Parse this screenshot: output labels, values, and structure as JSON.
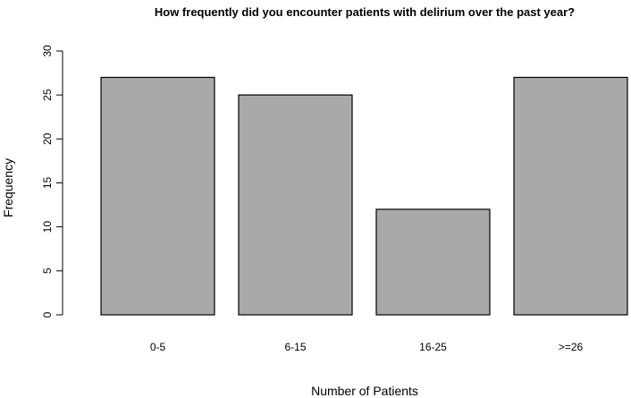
{
  "chart_data": {
    "type": "bar",
    "title": "How frequently did you encounter patients with delirium over the past year?",
    "xlabel": "Number of Patients",
    "ylabel": "Frequency",
    "categories": [
      "0-5",
      "6-15",
      "16-25",
      ">=26"
    ],
    "values": [
      27,
      25,
      12,
      27
    ],
    "ylim": [
      0,
      30
    ],
    "yticks": [
      0,
      5,
      10,
      15,
      20,
      25,
      30
    ],
    "grid": false,
    "bar_color": "#a9a9a9"
  }
}
